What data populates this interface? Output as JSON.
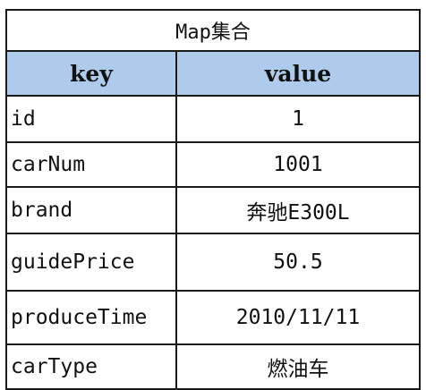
{
  "table": {
    "title": "Map集合",
    "headers": {
      "key": "key",
      "value": "value"
    },
    "rows": [
      {
        "key": "id",
        "value": "1"
      },
      {
        "key": "carNum",
        "value": "1001"
      },
      {
        "key": "brand",
        "value": "奔驰E300L"
      },
      {
        "key": "guidePrice",
        "value": "50.5"
      },
      {
        "key": "produceTime",
        "value": "2010/11/11"
      },
      {
        "key": "carType",
        "value": "燃油车"
      }
    ]
  },
  "colors": {
    "header_bg": "#aecbeb",
    "border": "#1a1a1a"
  }
}
